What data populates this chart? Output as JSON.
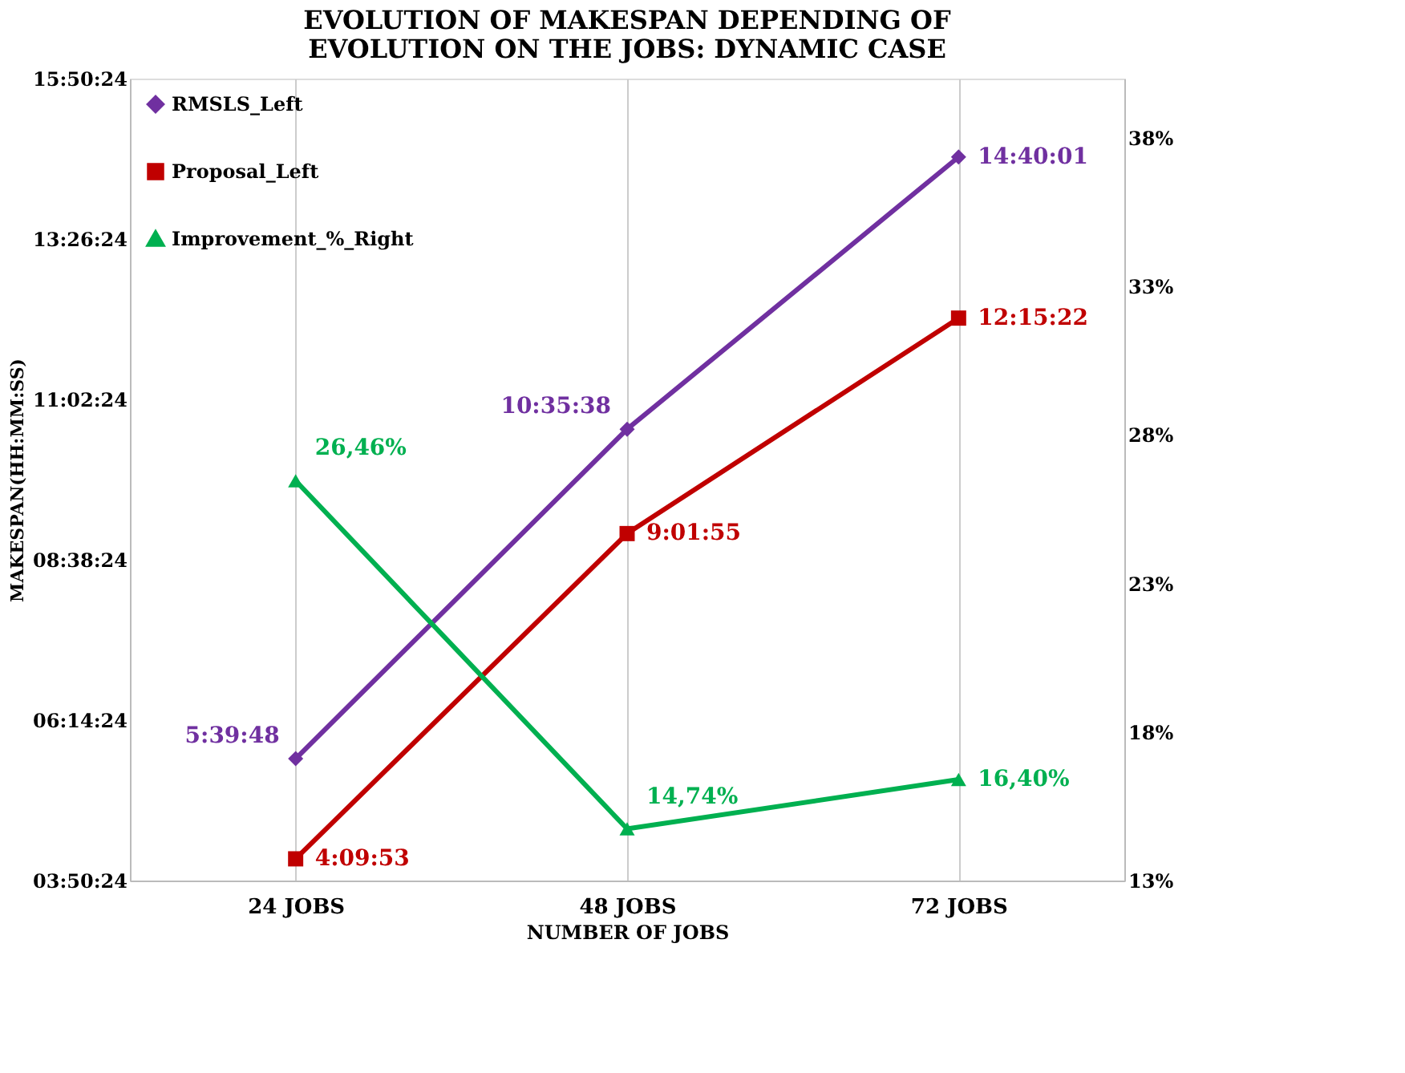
{
  "chart_data": {
    "type": "line",
    "title": "EVOLUTION OF MAKESPAN DEPENDING OF\nEVOLUTION ON THE JOBS: DYNAMIC CASE",
    "xlabel": "NUMBER OF JOBS",
    "ylabel": "MAKESPAN(HH:MM:SS)",
    "categories": [
      "24 JOBS",
      "48 JOBS",
      "72 JOBS"
    ],
    "series": [
      {
        "name": "RMSLS_Left",
        "color": "#7030a0",
        "marker": "diamond",
        "values": [
          5.6633,
          10.5939,
          14.6669
        ],
        "value_labels": [
          "5:39:48",
          "10:35:38",
          "14:40:01"
        ]
      },
      {
        "name": "Proposal_Left",
        "color": "#c00000",
        "marker": "square",
        "values": [
          4.1647,
          9.0319,
          12.2561
        ],
        "value_labels": [
          "4:09:53",
          "9:01:55",
          "12:15:22"
        ]
      },
      {
        "name": "Improvement_%_Right",
        "color": "#00b050",
        "marker": "triangle",
        "axis": "y2",
        "values": [
          26.46,
          14.74,
          16.4
        ],
        "value_labels": [
          "26,46%",
          "14,74%",
          "16,40%"
        ]
      }
    ],
    "ylim": [
      3.84,
      15.84
    ],
    "yticks": [
      {
        "value": 3.84,
        "label": "03:50:24"
      },
      {
        "value": 6.24,
        "label": "06:14:24"
      },
      {
        "value": 8.64,
        "label": "08:38:24"
      },
      {
        "value": 11.04,
        "label": "11:02:24"
      },
      {
        "value": 13.44,
        "label": "13:26:24"
      },
      {
        "value": 15.84,
        "label": "15:50:24"
      }
    ],
    "y2lim": [
      13,
      40
    ],
    "y2ticks": [
      {
        "value": 13,
        "label": "13%"
      },
      {
        "value": 18,
        "label": "18%"
      },
      {
        "value": 23,
        "label": "23%"
      },
      {
        "value": 28,
        "label": "28%"
      },
      {
        "value": 33,
        "label": "33%"
      },
      {
        "value": 38,
        "label": "38%"
      }
    ],
    "grid": "x",
    "legend": "top left",
    "line_style": "solid"
  }
}
